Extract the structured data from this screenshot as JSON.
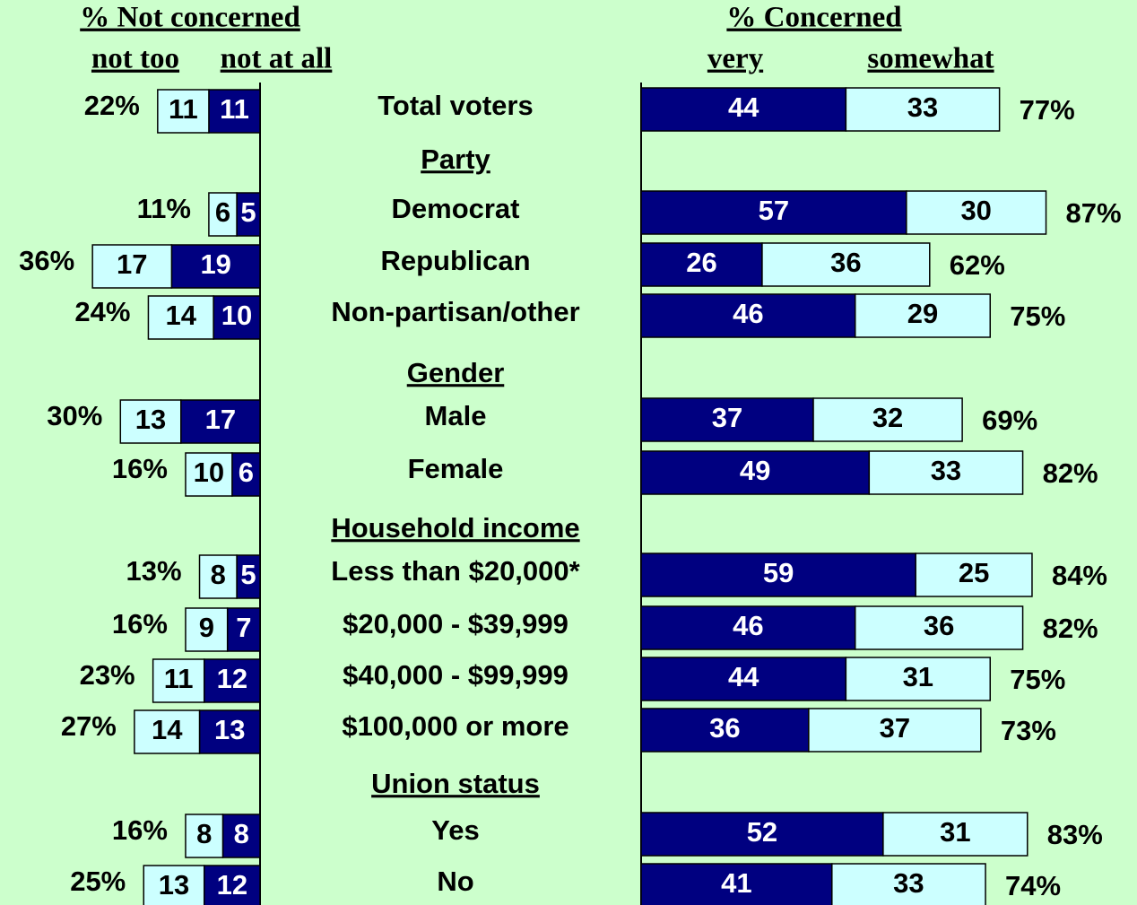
{
  "chart_data": {
    "type": "diverging_bar",
    "left_title": "% Not concerned",
    "right_title": "% Concerned",
    "categories": [
      "Total voters",
      "Party",
      "Democrat",
      "Republican",
      "Non-partisan/other",
      "Gender",
      "Male",
      "Female",
      "Household income",
      "Less than $20,000*",
      "$20,000 - $39,999",
      "$40,000 - $99,999",
      "$100,000 or more",
      "Union status",
      "Yes",
      "No"
    ],
    "left_series": [
      {
        "name": "not too",
        "color": "#ccffff",
        "values": [
          11,
          null,
          6,
          17,
          14,
          null,
          13,
          10,
          null,
          8,
          9,
          11,
          14,
          null,
          8,
          13
        ]
      },
      {
        "name": "not at all",
        "color": "#000080",
        "values": [
          11,
          null,
          5,
          19,
          10,
          null,
          17,
          6,
          null,
          5,
          7,
          12,
          13,
          null,
          8,
          12
        ]
      }
    ],
    "right_series": [
      {
        "name": "very",
        "color": "#000080",
        "values": [
          44,
          null,
          57,
          26,
          46,
          null,
          37,
          49,
          null,
          59,
          46,
          44,
          36,
          null,
          52,
          41
        ]
      },
      {
        "name": "somewhat",
        "color": "#ccffff",
        "values": [
          33,
          null,
          30,
          36,
          29,
          null,
          32,
          33,
          null,
          25,
          36,
          31,
          37,
          null,
          31,
          33
        ]
      }
    ],
    "left_totals": {
      "values": [
        22,
        null,
        11,
        36,
        24,
        null,
        30,
        16,
        null,
        13,
        16,
        23,
        27,
        null,
        16,
        25
      ],
      "value_labels": [
        "22%",
        null,
        "11%",
        "36%",
        "24%",
        null,
        "30%",
        "16%",
        null,
        "13%",
        "16%",
        "23%",
        "27%",
        null,
        "16%",
        "25%"
      ]
    },
    "right_totals": {
      "values": [
        77,
        null,
        87,
        62,
        75,
        null,
        69,
        82,
        null,
        84,
        82,
        75,
        73,
        null,
        83,
        74
      ],
      "value_labels": [
        "77%",
        null,
        "87%",
        "62%",
        "75%",
        null,
        "69%",
        "82%",
        null,
        "84%",
        "82%",
        "75%",
        "73%",
        null,
        "83%",
        "74%"
      ]
    }
  }
}
